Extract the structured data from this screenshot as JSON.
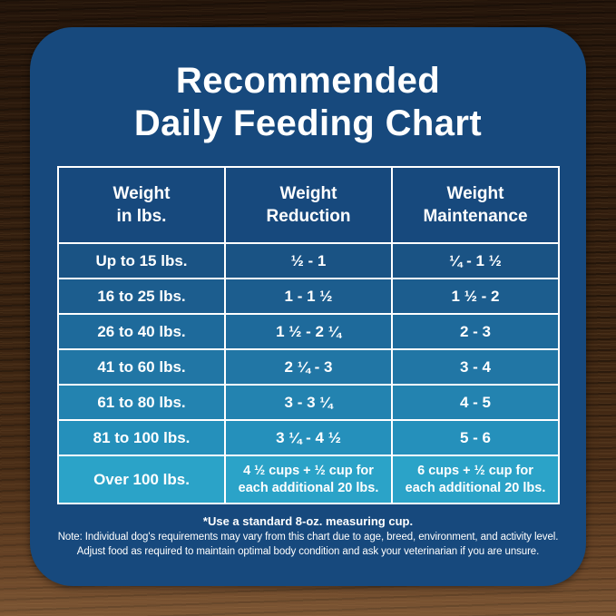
{
  "title": {
    "line1": "Recommended",
    "line2": "Daily Feeding Chart"
  },
  "table": {
    "headers": [
      {
        "line1": "Weight",
        "line2": "in lbs."
      },
      {
        "line1": "Weight",
        "line2": "Reduction"
      },
      {
        "line1": "Weight",
        "line2": "Maintenance"
      }
    ],
    "rows": [
      {
        "weight": "Up to 15 lbs.",
        "reduction": "½ - 1",
        "maintenance": "¼ - 1 ½"
      },
      {
        "weight": "16 to 25 lbs.",
        "reduction": "1 - 1 ½",
        "maintenance": "1 ½ - 2"
      },
      {
        "weight": "26 to 40 lbs.",
        "reduction": "1 ½ - 2 ¼",
        "maintenance": "2 - 3"
      },
      {
        "weight": "41 to 60 lbs.",
        "reduction": "2 ¼ - 3",
        "maintenance": "3 - 4"
      },
      {
        "weight": "61 to 80 lbs.",
        "reduction": "3 - 3 ¼",
        "maintenance": "4 - 5"
      },
      {
        "weight": "81 to 100 lbs.",
        "reduction": "3 ¼ - 4 ½",
        "maintenance": "5 - 6"
      }
    ],
    "last_row": {
      "weight": "Over 100 lbs.",
      "reduction_line1": "4 ½ cups  + ½ cup for",
      "reduction_line2": "each additional 20 lbs.",
      "maintenance_line1": "6 cups  + ½ cup for",
      "maintenance_line2": "each additional 20 lbs."
    }
  },
  "footnotes": {
    "measuring_cup": "*Use a standard 8-oz. measuring cup.",
    "note_line1": "Note: Individual dog's requirements may vary from this chart due to age, breed, environment, and activity level.",
    "note_line2": "Adjust food as required to maintain optimal body condition and ask your veterinarian if you are unsure."
  },
  "colors": {
    "card_background": "#17497D",
    "header_background": "#17497D",
    "table_border": "#FFFFFF",
    "text": "#FFFFFF",
    "row_gradient": [
      "#1A5384",
      "#1C5D8E",
      "#1E6A9B",
      "#2176A5",
      "#2383B0",
      "#2590BB",
      "#2BA3C8"
    ]
  },
  "chart_data": {
    "type": "table",
    "title": "Recommended Daily Feeding Chart",
    "columns": [
      "Weight in lbs.",
      "Weight Reduction",
      "Weight Maintenance"
    ],
    "rows": [
      [
        "Up to 15 lbs.",
        "½ - 1",
        "¼ - 1 ½"
      ],
      [
        "16 to 25 lbs.",
        "1 - 1 ½",
        "1 ½ - 2"
      ],
      [
        "26 to 40 lbs.",
        "1 ½ - 2 ¼",
        "2 - 3"
      ],
      [
        "41 to 60 lbs.",
        "2 ¼ - 3",
        "3 - 4"
      ],
      [
        "61 to 80 lbs.",
        "3 - 3 ¼",
        "4 - 5"
      ],
      [
        "81 to 100 lbs.",
        "3 ¼ - 4 ½",
        "5 - 6"
      ],
      [
        "Over 100 lbs.",
        "4 ½ cups + ½ cup for each additional 20 lbs.",
        "6 cups + ½ cup for each additional 20 lbs."
      ]
    ],
    "annotations": [
      "*Use a standard 8-oz. measuring cup.",
      "Note: Individual dog's requirements may vary from this chart due to age, breed, environment, and activity level.",
      "Adjust food as required to maintain optimal body condition and ask your veterinarian if you are unsure."
    ]
  }
}
